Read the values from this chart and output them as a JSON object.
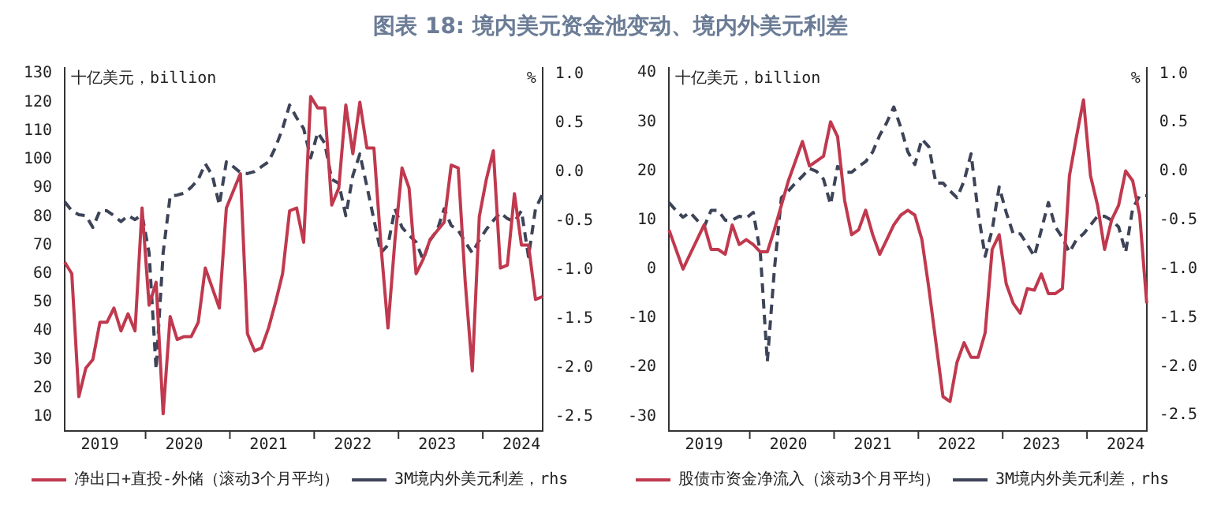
{
  "chart_data": [
    {
      "type": "line",
      "title": "图表 18: 境内美元资金池变动、境内外美元利差",
      "ylabel": "十亿美元，billion",
      "y2label": "%",
      "categories": [
        null,
        null,
        null,
        null,
        null,
        "2019",
        null,
        null,
        null,
        null,
        null,
        null,
        null,
        null,
        null,
        null,
        null,
        "2020",
        null,
        null,
        null,
        null,
        null,
        null,
        null,
        null,
        null,
        null,
        null,
        "2021",
        null,
        null,
        null,
        null,
        null,
        null,
        null,
        null,
        null,
        null,
        null,
        "2022",
        null,
        null,
        null,
        null,
        null,
        null,
        null,
        null,
        null,
        null,
        null,
        "2023",
        null,
        null,
        null,
        null,
        null,
        null,
        null,
        null,
        null,
        null,
        null,
        "2024",
        null,
        null,
        null
      ],
      "ylim": [
        5,
        132
      ],
      "yticks": [
        10,
        20,
        30,
        40,
        50,
        60,
        70,
        80,
        90,
        100,
        110,
        120,
        130
      ],
      "y2lim": [
        -2.65,
        1.06
      ],
      "y2ticks": [
        {
          "value": 1,
          "label": "1.0"
        },
        {
          "value": 0.5,
          "label": "0.5"
        },
        {
          "value": 0,
          "label": "0.0"
        },
        {
          "value": -0.5,
          "label": "-0.5"
        },
        {
          "value": -1,
          "label": "-1.0"
        },
        {
          "value": -1.5,
          "label": "-1.5"
        },
        {
          "value": -2,
          "label": "-2.0"
        },
        {
          "value": -2.5,
          "label": "-2.5"
        }
      ],
      "grid": false,
      "legend": "bottom",
      "series": [
        {
          "name": "净出口+直投-外储（滚动3个月平均）",
          "color": "#c0394e",
          "line_style": "solid",
          "values": [
            64,
            60,
            17,
            27,
            30,
            43,
            43,
            48,
            40,
            46,
            40,
            83,
            49,
            57,
            11,
            45,
            37,
            38,
            38,
            43,
            62,
            55,
            48,
            83,
            89,
            95,
            39,
            33,
            34,
            41,
            50,
            60,
            82,
            83,
            71,
            122,
            118,
            118,
            84,
            90,
            119,
            102,
            120,
            104,
            104,
            70,
            41,
            72,
            97,
            90,
            60,
            65,
            72,
            75,
            78,
            98,
            97,
            57,
            26,
            80,
            93,
            103,
            62,
            63,
            88,
            70,
            70,
            51,
            52
          ]
        },
        {
          "name": "3M境内外美元利差，rhs",
          "color": "#3d4458",
          "line_style": "dashed",
          "axis": "y2",
          "values": [
            -0.31,
            -0.4,
            -0.44,
            -0.45,
            -0.57,
            -0.4,
            -0.4,
            -0.45,
            -0.51,
            -0.45,
            -0.49,
            -0.44,
            -0.83,
            -2.02,
            -0.83,
            -0.25,
            -0.24,
            -0.22,
            -0.16,
            -0.08,
            0.08,
            -0.04,
            -0.34,
            0.1,
            0.05,
            -0.01,
            -0.02,
            0,
            0.05,
            0.1,
            0.25,
            0.44,
            0.68,
            0.55,
            0.44,
            0.14,
            0.4,
            0.29,
            -0.08,
            -0.12,
            -0.45,
            -0.04,
            0.18,
            -0.15,
            -0.49,
            -0.83,
            -0.75,
            -0.38,
            -0.57,
            -0.65,
            -0.72,
            -0.9,
            -0.7,
            -0.6,
            -0.38,
            -0.55,
            -0.6,
            -0.72,
            -0.83,
            -0.7,
            -0.59,
            -0.5,
            -0.42,
            -0.48,
            -0.51,
            -0.4,
            -0.87,
            -0.38,
            -0.23
          ]
        }
      ]
    },
    {
      "type": "line",
      "ylabel": "十亿美元，billion",
      "y2label": "%",
      "categories": [
        null,
        null,
        null,
        null,
        null,
        "2019",
        null,
        null,
        null,
        null,
        null,
        null,
        null,
        null,
        null,
        null,
        null,
        "2020",
        null,
        null,
        null,
        null,
        null,
        null,
        null,
        null,
        null,
        null,
        null,
        "2021",
        null,
        null,
        null,
        null,
        null,
        null,
        null,
        null,
        null,
        null,
        null,
        "2022",
        null,
        null,
        null,
        null,
        null,
        null,
        null,
        null,
        null,
        null,
        null,
        "2023",
        null,
        null,
        null,
        null,
        null,
        null,
        null,
        null,
        null,
        null,
        null,
        "2024",
        null,
        null,
        null
      ],
      "ylim": [
        -33,
        41
      ],
      "yticks": [
        -30,
        -20,
        -10,
        0,
        10,
        20,
        30,
        40
      ],
      "y2lim": [
        -2.66,
        1.06
      ],
      "y2ticks": [
        {
          "value": 1,
          "label": "1.0"
        },
        {
          "value": 0.5,
          "label": "0.5"
        },
        {
          "value": 0,
          "label": "0.0"
        },
        {
          "value": -0.5,
          "label": "-0.5"
        },
        {
          "value": -1,
          "label": "-1.0"
        },
        {
          "value": -1.5,
          "label": "-1.5"
        },
        {
          "value": -2,
          "label": "-2.0"
        },
        {
          "value": -2.5,
          "label": "-2.5"
        }
      ],
      "grid": false,
      "legend": "bottom",
      "series": [
        {
          "name": "股债市资金净流入（滚动3个月平均）",
          "color": "#c0394e",
          "line_style": "solid",
          "values": [
            8,
            4,
            0,
            3,
            6,
            9,
            4,
            4,
            3,
            9,
            5,
            6,
            5,
            3.5,
            3.5,
            8,
            13,
            18,
            22,
            26,
            21,
            22,
            23,
            30,
            27,
            14,
            7,
            8,
            12,
            7,
            3,
            6,
            9,
            11,
            12,
            11,
            6,
            -4,
            -15,
            -26,
            -27,
            -19,
            -15,
            -18,
            -18,
            -13,
            4,
            7,
            -3,
            -7,
            -9,
            -4,
            -4.3,
            -1,
            -5,
            -5,
            -4,
            19,
            27,
            34.5,
            19,
            13,
            4,
            10,
            13,
            20,
            18,
            11,
            -7
          ]
        },
        {
          "name": "3M境内外美元利差，rhs",
          "color": "#3d4458",
          "line_style": "dashed",
          "axis": "y2",
          "values": [
            -0.32,
            -0.4,
            -0.47,
            -0.42,
            -0.5,
            -0.57,
            -0.4,
            -0.4,
            -0.5,
            -0.5,
            -0.46,
            -0.48,
            -0.42,
            -0.83,
            -1.95,
            -1.01,
            -0.27,
            -0.2,
            -0.12,
            -0.05,
            0.03,
            0,
            -0.08,
            -0.34,
            0.05,
            -0.01,
            -0.01,
            0.05,
            0.1,
            0.2,
            0.37,
            0.5,
            0.66,
            0.45,
            0.2,
            0.07,
            0.33,
            0.25,
            -0.12,
            -0.12,
            -0.2,
            -0.27,
            -0.1,
            0.18,
            -0.42,
            -0.87,
            -0.6,
            -0.16,
            -0.42,
            -0.64,
            -0.64,
            -0.75,
            -0.87,
            -0.6,
            -0.32,
            -0.57,
            -0.68,
            -0.83,
            -0.7,
            -0.64,
            -0.55,
            -0.46,
            -0.46,
            -0.5,
            -0.57,
            -0.83,
            -0.38,
            -0.25,
            -0.25
          ]
        }
      ]
    }
  ]
}
